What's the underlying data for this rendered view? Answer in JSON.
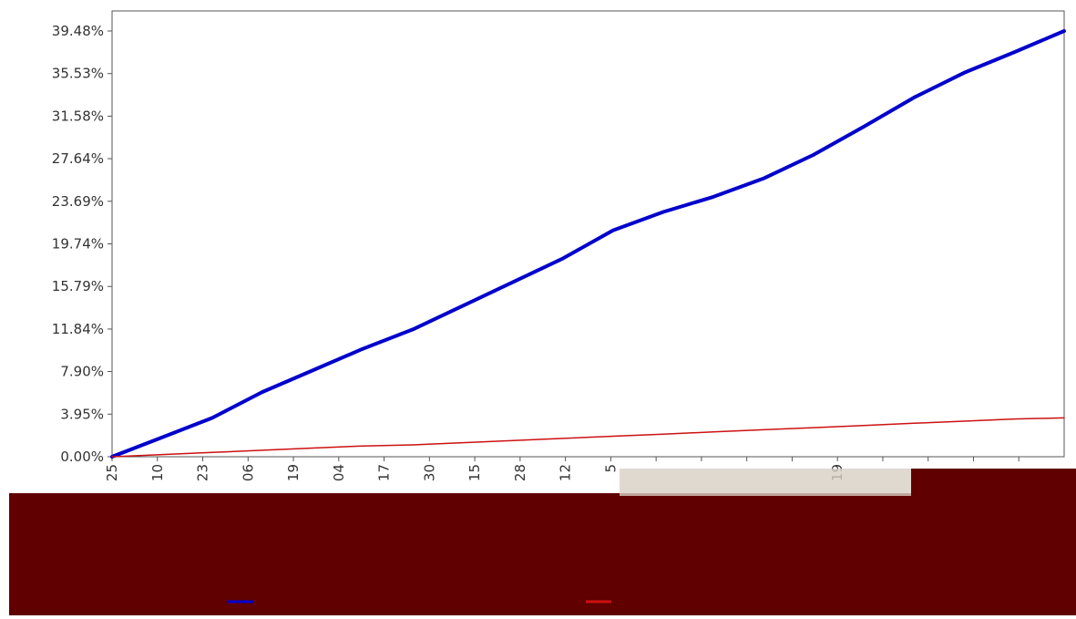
{
  "chart_data": {
    "type": "line",
    "title": "",
    "xlabel": "",
    "ylabel": "",
    "y_tick_labels": [
      "0.00%",
      "3.95%",
      "7.90%",
      "11.84%",
      "15.79%",
      "19.74%",
      "23.69%",
      "27.64%",
      "31.58%",
      "35.53%",
      "39.48%"
    ],
    "y_ticks": [
      0.0,
      3.95,
      7.9,
      11.84,
      15.79,
      19.74,
      23.69,
      27.64,
      31.58,
      35.53,
      39.48
    ],
    "ylim": [
      0,
      39.48
    ],
    "x_tick_labels": [
      "25",
      "10",
      "23",
      "06",
      "19",
      "04",
      "17",
      "30",
      "15",
      "28",
      "12",
      "5",
      "",
      "",
      "",
      "",
      "19",
      "",
      "",
      "",
      ""
    ],
    "grid": true,
    "series": [
      {
        "color": "#0000cc",
        "values": [
          0.0,
          1.8,
          3.6,
          6.0,
          8.0,
          10.0,
          11.8,
          14.0,
          16.2,
          18.4,
          21.0,
          22.7,
          24.1,
          25.8,
          28.0,
          30.6,
          33.3,
          35.6,
          37.5,
          39.48
        ]
      },
      {
        "color": "#cc1111",
        "values": [
          0.0,
          0.2,
          0.4,
          0.6,
          0.8,
          1.0,
          1.1,
          1.3,
          1.5,
          1.7,
          1.9,
          2.1,
          2.3,
          2.5,
          2.7,
          2.9,
          3.1,
          3.3,
          3.5,
          3.6
        ]
      }
    ]
  },
  "colors": {
    "background": "#ffffff",
    "grid": "#888888",
    "axis": "#555555",
    "label_text": "#333333",
    "legend_band": "#600000"
  }
}
